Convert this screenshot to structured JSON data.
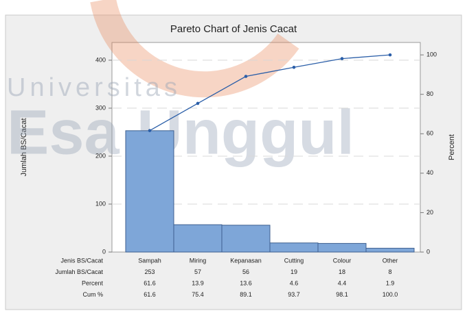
{
  "chart_data": {
    "type": "pareto",
    "title": "Pareto Chart of Jenis Cacat",
    "y_label": "Jumlah BS/Cacat",
    "y2_label": "Percent",
    "x_label": "Jenis BS/Cacat",
    "categories": [
      "Sampah",
      "Miring",
      "Kepanasan",
      "Cutting",
      "Colour",
      "Other"
    ],
    "series": [
      {
        "name": "Jumlah BS/Cacat",
        "color": "#7ea6d8",
        "values": [
          253,
          57,
          56,
          19,
          18,
          8
        ]
      },
      {
        "name": "Cum %",
        "color": "#2a5ea8",
        "axis": "y2",
        "values": [
          61.6,
          75.4,
          89.1,
          93.7,
          98.1,
          100
        ],
        "value_labels": [
          "61.6",
          "75.4",
          "89.1",
          "93.7",
          "98.1",
          "100.0"
        ]
      }
    ],
    "percent": {
      "name": "Percent",
      "values": [
        61.6,
        13.9,
        13.6,
        4.6,
        4.4,
        1.9
      ]
    },
    "ylim": [
      0,
      437
    ],
    "yticks": [
      0,
      100,
      200,
      300,
      400
    ],
    "y2lim": [
      0,
      106.3
    ],
    "y2ticks": [
      0,
      20,
      40,
      60,
      80,
      100
    ],
    "grid": true,
    "watermark": [
      "Universitas",
      "Esa Unggul"
    ]
  }
}
